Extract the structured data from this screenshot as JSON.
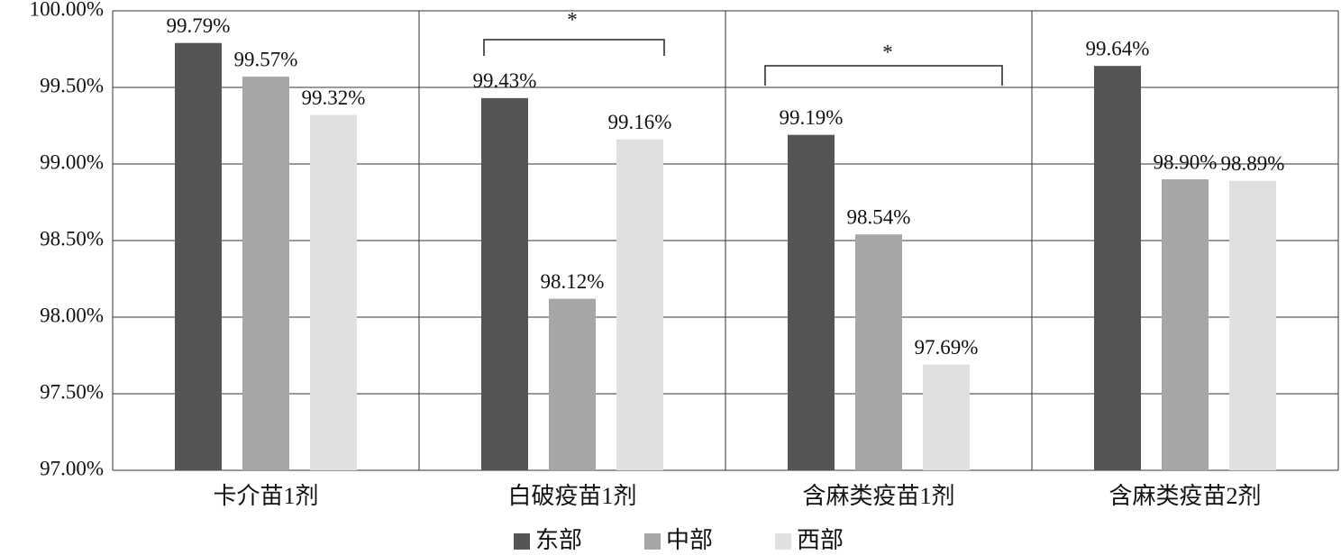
{
  "chart_data": {
    "type": "bar",
    "categories": [
      "卡介苗1剂",
      "白破疫苗1剂",
      "含麻类疫苗1剂",
      "含麻类疫苗2剂"
    ],
    "series": [
      {
        "name": "东部",
        "color": "#555555",
        "values": [
          99.79,
          99.43,
          99.19,
          99.64
        ],
        "value_labels": [
          "99.79%",
          "99.43%",
          "99.19%",
          "99.64%"
        ]
      },
      {
        "name": "中部",
        "color": "#a6a6a6",
        "values": [
          99.57,
          98.12,
          98.54,
          98.9
        ],
        "value_labels": [
          "99.57%",
          "98.12%",
          "98.54%",
          "98.90%"
        ]
      },
      {
        "name": "西部",
        "color": "#e0e0e0",
        "values": [
          99.32,
          99.16,
          97.69,
          98.89
        ],
        "value_labels": [
          "99.32%",
          "99.16%",
          "97.69%",
          "98.89%"
        ]
      }
    ],
    "ylim": [
      97,
      100
    ],
    "yticks": [
      {
        "value": 97,
        "label": "97.00%"
      },
      {
        "value": 97.5,
        "label": "97.50%"
      },
      {
        "value": 98,
        "label": "98.00%"
      },
      {
        "value": 98.5,
        "label": "98.50%"
      },
      {
        "value": 99,
        "label": "99.00%"
      },
      {
        "value": 99.5,
        "label": "99.50%"
      },
      {
        "value": 100,
        "label": "100.00%"
      }
    ],
    "grid": true,
    "legend": "bottom",
    "annotations": [
      "*",
      "*"
    ]
  }
}
